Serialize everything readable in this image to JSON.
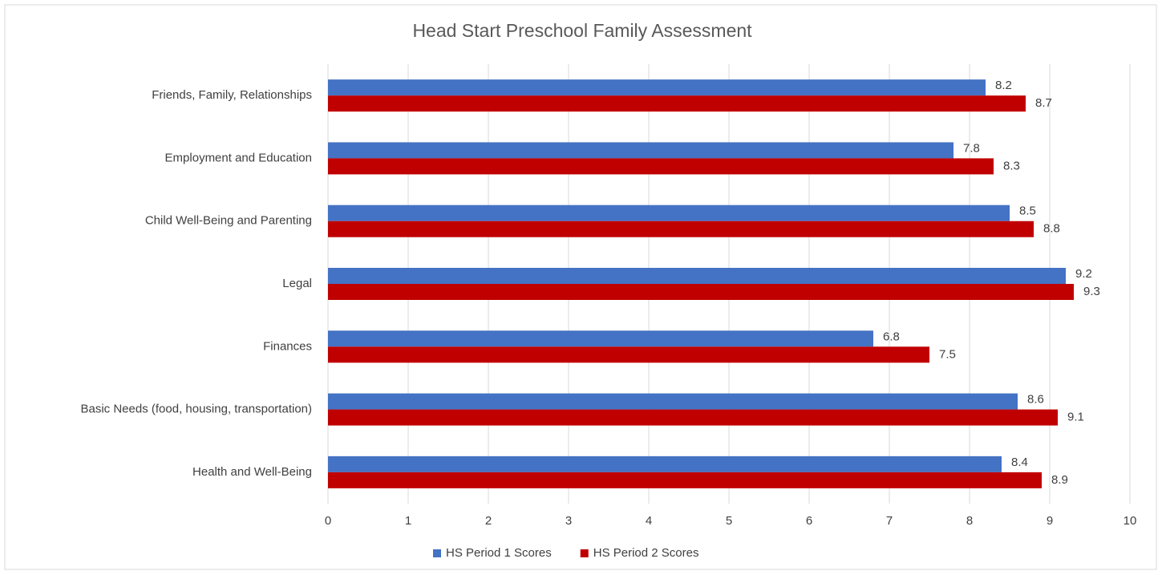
{
  "chart_data": {
    "type": "bar",
    "orientation": "horizontal",
    "title": "Head Start Preschool Family Assessment",
    "categories": [
      "Friends, Family, Relationships",
      "Employment and Education",
      "Child Well-Being and Parenting",
      "Legal",
      "Finances",
      "Basic Needs (food, housing, transportation)",
      "Health and Well-Being"
    ],
    "series": [
      {
        "name": "HS Period 1 Scores",
        "color": "#4472c4",
        "values": [
          8.2,
          7.8,
          8.5,
          9.2,
          6.8,
          8.6,
          8.4
        ]
      },
      {
        "name": "HS Period 2 Scores",
        "color": "#c00000",
        "values": [
          8.7,
          8.3,
          8.8,
          9.3,
          7.5,
          9.1,
          8.9
        ]
      }
    ],
    "xlim": [
      0,
      10
    ],
    "xticks": [
      0,
      1,
      2,
      3,
      4,
      5,
      6,
      7,
      8,
      9,
      10
    ],
    "grid": true,
    "legend": "bottom"
  }
}
